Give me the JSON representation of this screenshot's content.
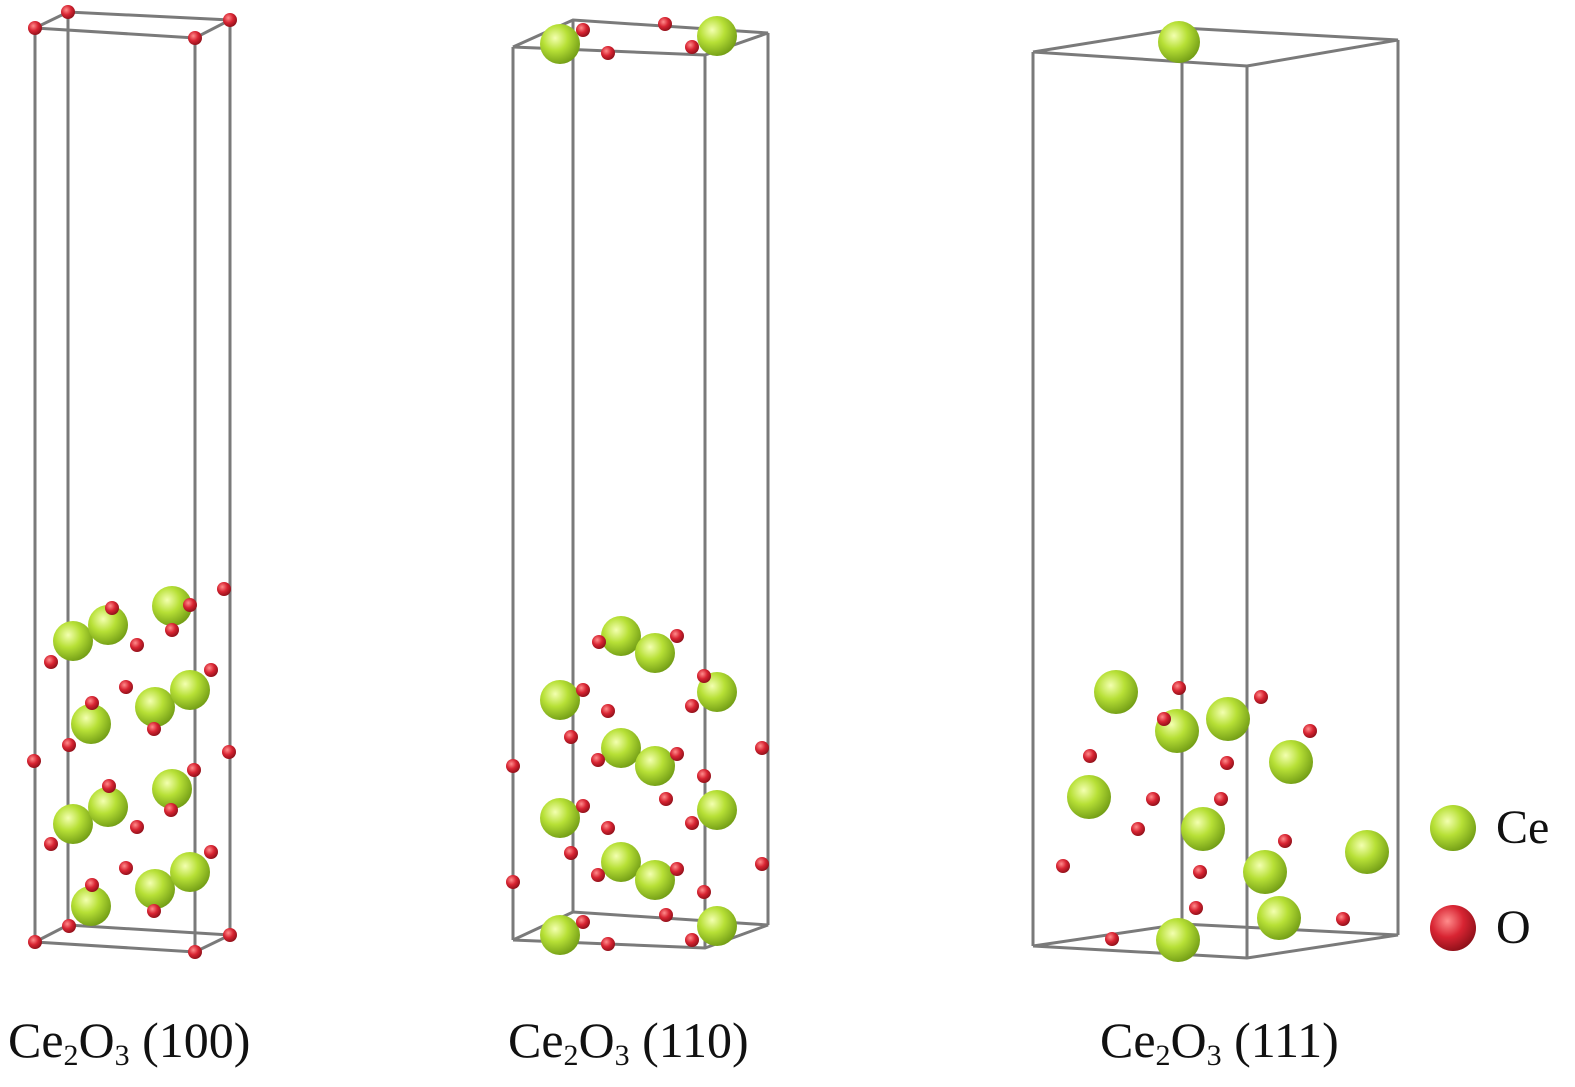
{
  "panels": [
    {
      "caption": {
        "el": "Ce",
        "sub1": "2",
        "el2": "O",
        "sub2": "3",
        "facet": "(100)"
      }
    },
    {
      "caption": {
        "el": "Ce",
        "sub1": "2",
        "el2": "O",
        "sub2": "3",
        "facet": "(110)"
      }
    },
    {
      "caption": {
        "el": "Ce",
        "sub1": "2",
        "el2": "O",
        "sub2": "3",
        "facet": "(111)"
      }
    }
  ],
  "legend": {
    "items": [
      {
        "label": "Ce",
        "color": "#a8d52a"
      },
      {
        "label": "O",
        "color": "#cc1f2a"
      }
    ]
  },
  "colors": {
    "cell_edge": "#7a7a7a",
    "ce_atom": "#a8d52a",
    "o_atom": "#cc1f2a"
  }
}
